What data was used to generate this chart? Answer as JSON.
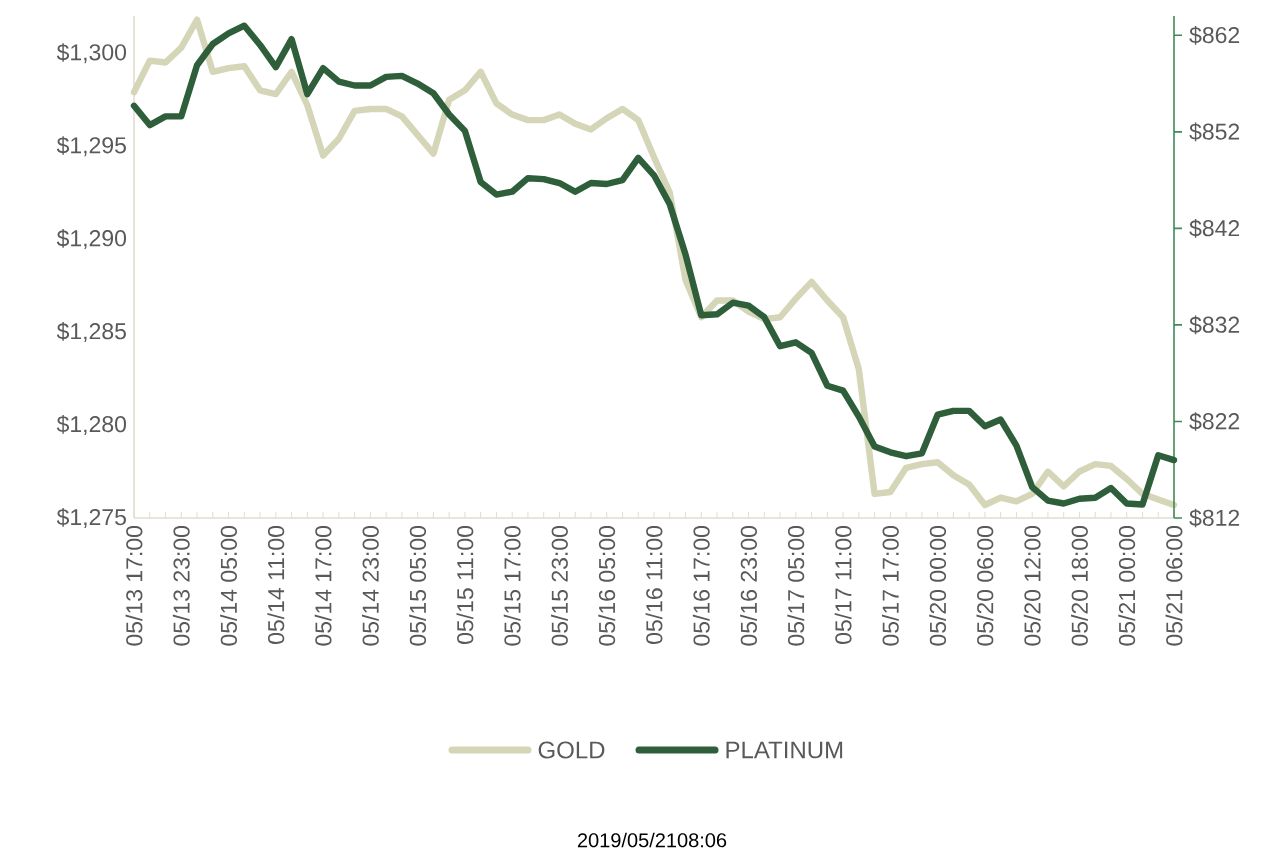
{
  "chart_data": {
    "type": "line",
    "categories": [
      "05/13 17:00",
      null,
      null,
      "05/13 23:00",
      null,
      null,
      "05/14 05:00",
      null,
      null,
      "05/14 11:00",
      null,
      null,
      "05/14 17:00",
      null,
      null,
      "05/14 23:00",
      null,
      null,
      "05/15 05:00",
      null,
      null,
      "05/15 11:00",
      null,
      null,
      "05/15 17:00",
      null,
      null,
      "05/15 23:00",
      null,
      null,
      "05/16 05:00",
      null,
      null,
      "05/16 11:00",
      null,
      null,
      "05/16 17:00",
      null,
      null,
      "05/16 23:00",
      null,
      null,
      "05/17 05:00",
      null,
      null,
      "05/17 11:00",
      null,
      null,
      "05/17 17:00",
      null,
      null,
      "05/20 00:00",
      null,
      null,
      "05/20 06:00",
      null,
      null,
      "05/20 12:00",
      null,
      null,
      "05/20 18:00",
      null,
      null,
      "05/21 00:00",
      null,
      null,
      "05/21 06:00"
    ],
    "series": [
      {
        "name": "GOLD",
        "color": "#d5d5b8",
        "values": [
          1297.9,
          1299.6,
          1299.5,
          1300.3,
          1301.8,
          1299.0,
          1299.2,
          1299.3,
          1298.0,
          1297.8,
          1299.0,
          1297.2,
          1294.5,
          1295.4,
          1296.9,
          1297.0,
          1297.0,
          1296.6,
          1295.6,
          1294.6,
          1297.5,
          1298.0,
          1299.0,
          1297.3,
          1296.7,
          1296.4,
          1296.4,
          1296.7,
          1296.2,
          1295.9,
          1296.5,
          1297.0,
          1296.4,
          1294.4,
          1292.5,
          1287.8,
          1285.8,
          1286.7,
          1286.7,
          1286.1,
          1285.7,
          1285.8,
          1286.8,
          1287.7,
          1286.7,
          1285.8,
          1283.0,
          1276.3,
          1276.4,
          1277.7,
          1277.9,
          1278.0,
          1277.3,
          1276.8,
          1275.7,
          1276.1,
          1275.9,
          1276.3,
          1277.5,
          1276.7,
          1277.5,
          1277.9,
          1277.8,
          1277.1,
          1276.3,
          1276.0,
          1275.7
        ]
      },
      {
        "name": "PLATINUM",
        "color": "#2e5e3a",
        "axis": "y2",
        "values": [
          854.7,
          852.7,
          853.6,
          853.6,
          858.9,
          861.1,
          862.2,
          863.0,
          861.0,
          858.7,
          861.6,
          855.9,
          858.6,
          857.2,
          856.8,
          856.8,
          857.7,
          857.8,
          857.0,
          856.0,
          853.8,
          852.1,
          846.8,
          845.5,
          845.8,
          847.2,
          847.1,
          846.7,
          845.8,
          846.7,
          846.6,
          847.0,
          849.3,
          847.5,
          844.5,
          839.3,
          833.0,
          833.1,
          834.3,
          834.0,
          832.8,
          829.8,
          830.2,
          829.1,
          825.7,
          825.2,
          822.5,
          819.4,
          818.8,
          818.4,
          818.7,
          822.7,
          823.1,
          823.1,
          821.5,
          822.2,
          819.5,
          815.2,
          813.8,
          813.5,
          814.0,
          814.1,
          815.1,
          813.5,
          813.4,
          818.5,
          818.0
        ]
      }
    ],
    "ylim": [
      1275,
      1302
    ],
    "yticks": [
      {
        "value": 1275,
        "label": "$1,275"
      },
      {
        "value": 1280,
        "label": "$1,280"
      },
      {
        "value": 1285,
        "label": "$1,285"
      },
      {
        "value": 1290,
        "label": "$1,290"
      },
      {
        "value": 1295,
        "label": "$1,295"
      },
      {
        "value": 1300,
        "label": "$1,300"
      }
    ],
    "y2lim": [
      812,
      864
    ],
    "y2ticks": [
      {
        "value": 812,
        "label": "$812"
      },
      {
        "value": 822,
        "label": "$822"
      },
      {
        "value": 832,
        "label": "$832"
      },
      {
        "value": 842,
        "label": "$842"
      },
      {
        "value": 852,
        "label": "$852"
      },
      {
        "value": 862,
        "label": "$862"
      }
    ],
    "legend": "bottom",
    "line_style": "solid",
    "annotations": [
      "2019/05/2108:06"
    ]
  }
}
